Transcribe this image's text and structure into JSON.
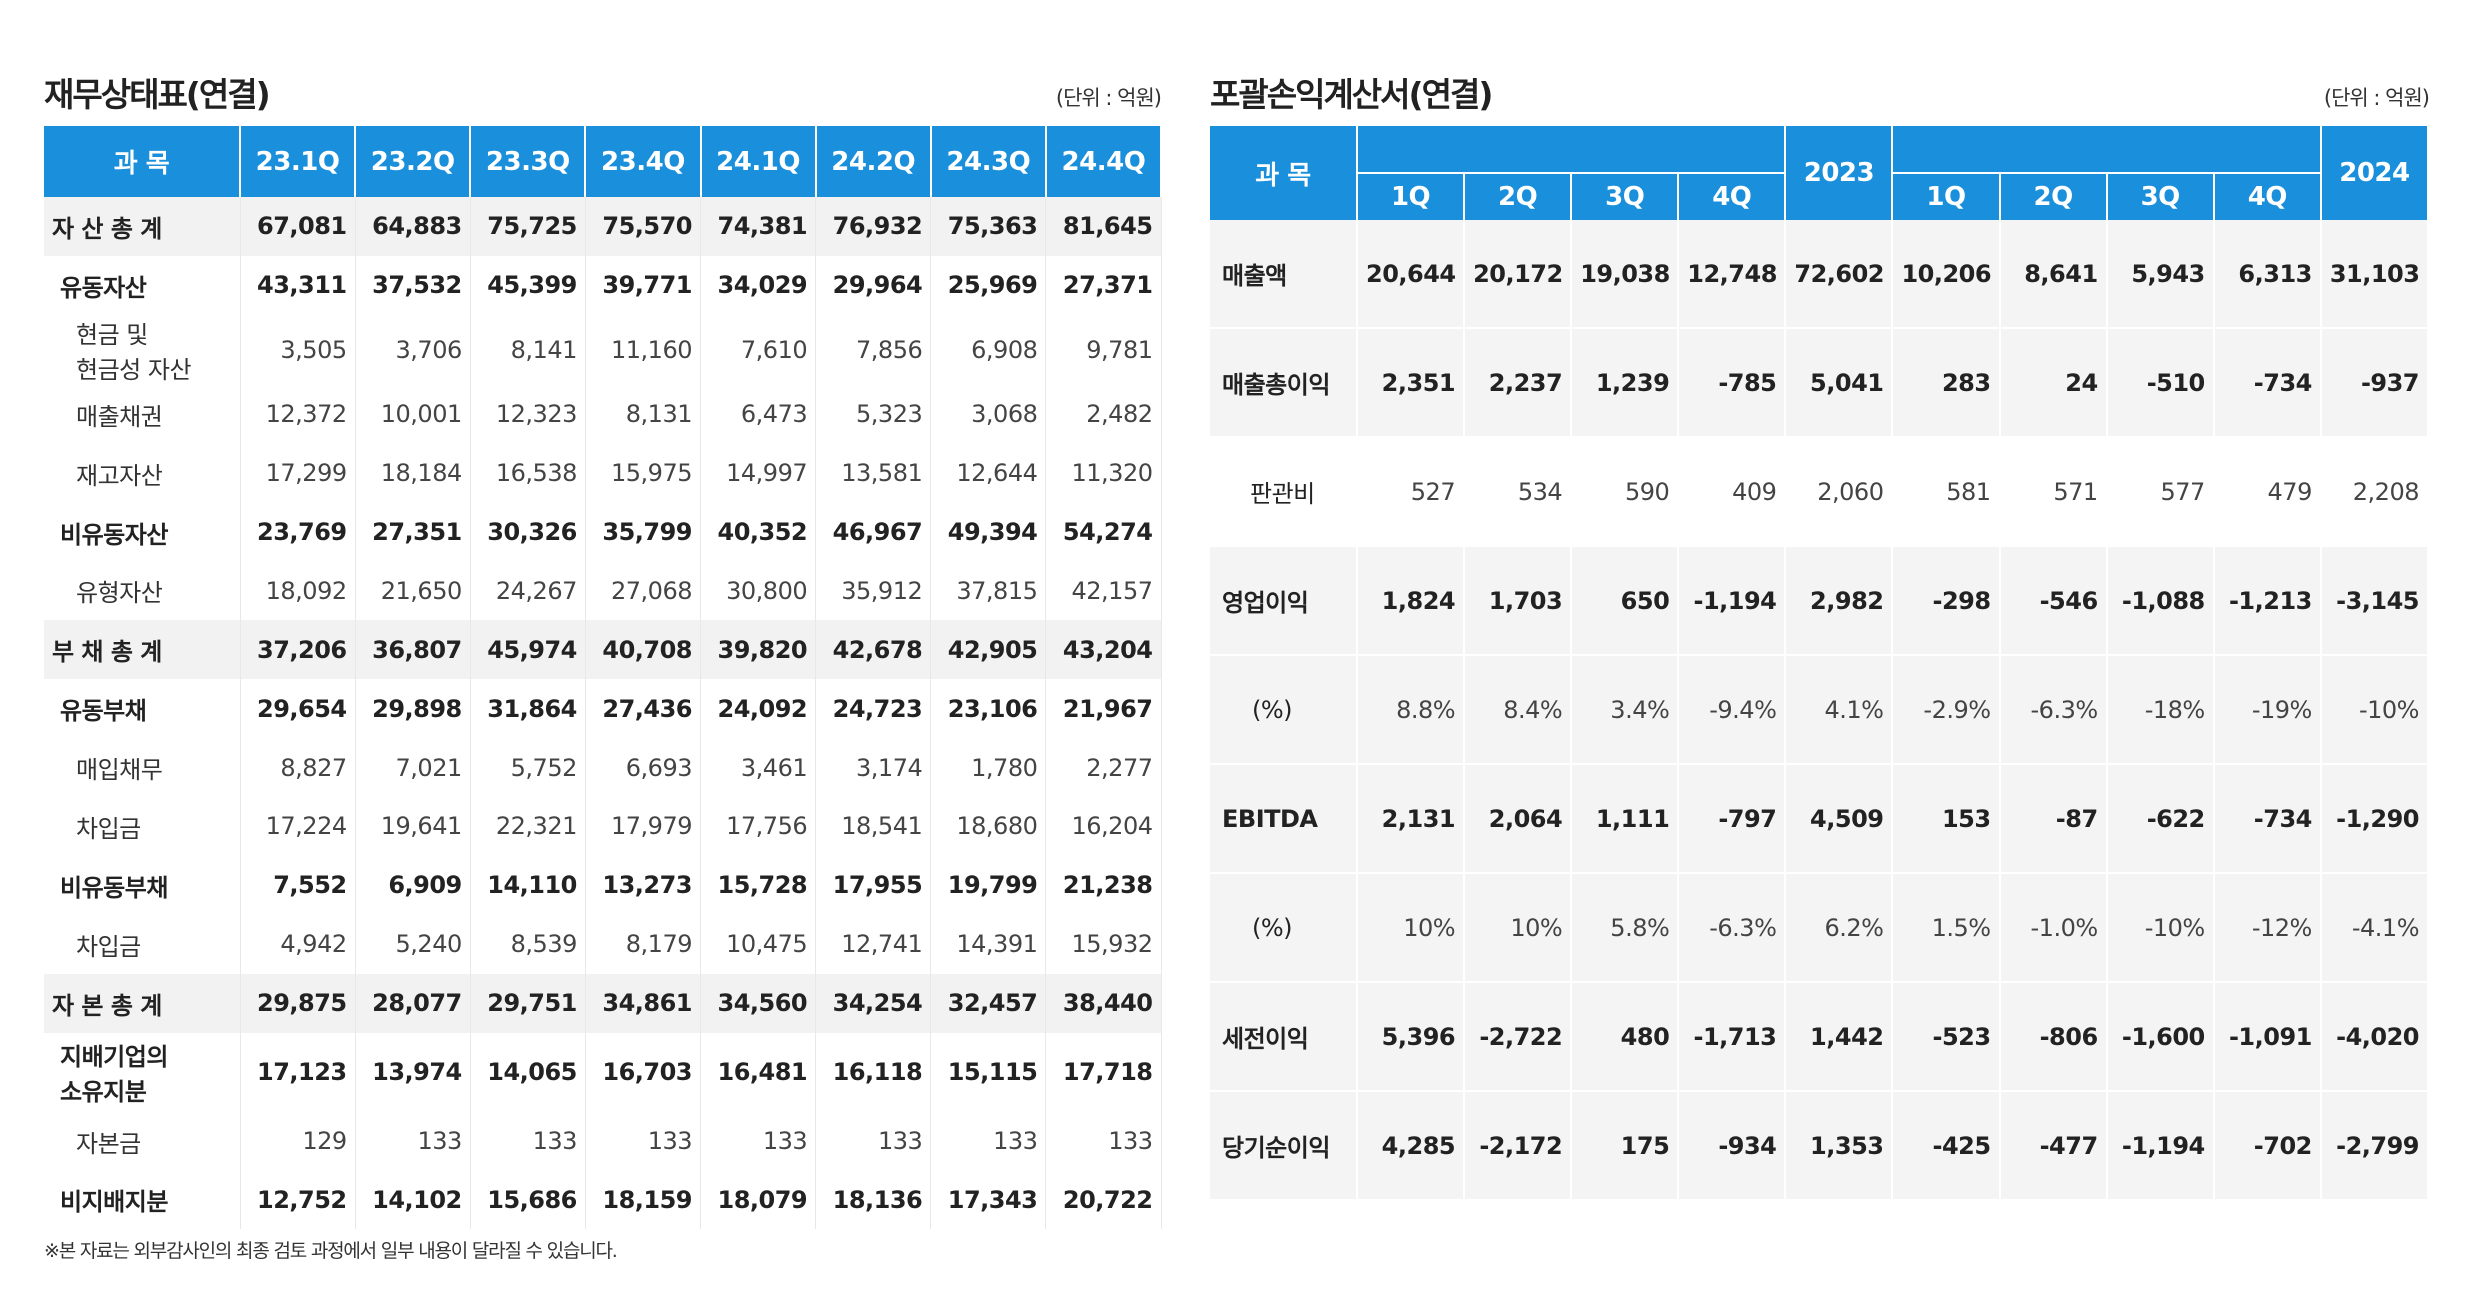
{
  "balance_sheet": {
    "title": "재무상태표(연결)",
    "unit": "(단위 : 억원)",
    "header": [
      "과 목",
      "23.1Q",
      "23.2Q",
      "23.3Q",
      "23.4Q",
      "24.1Q",
      "24.2Q",
      "24.3Q",
      "24.4Q"
    ],
    "rows": [
      {
        "label": "자 산 총 계",
        "values": [
          "67,081",
          "64,883",
          "75,725",
          "75,570",
          "74,381",
          "76,932",
          "75,363",
          "81,645"
        ]
      },
      {
        "label": "유동자산",
        "values": [
          "43,311",
          "37,532",
          "45,399",
          "39,771",
          "34,029",
          "29,964",
          "25,969",
          "27,371"
        ]
      },
      {
        "label": "현금 및\n현금성 자산",
        "values": [
          "3,505",
          "3,706",
          "8,141",
          "11,160",
          "7,610",
          "7,856",
          "6,908",
          "9,781"
        ]
      },
      {
        "label": "매출채권",
        "values": [
          "12,372",
          "10,001",
          "12,323",
          "8,131",
          "6,473",
          "5,323",
          "3,068",
          "2,482"
        ]
      },
      {
        "label": "재고자산",
        "values": [
          "17,299",
          "18,184",
          "16,538",
          "15,975",
          "14,997",
          "13,581",
          "12,644",
          "11,320"
        ]
      },
      {
        "label": "비유동자산",
        "values": [
          "23,769",
          "27,351",
          "30,326",
          "35,799",
          "40,352",
          "46,967",
          "49,394",
          "54,274"
        ]
      },
      {
        "label": "유형자산",
        "values": [
          "18,092",
          "21,650",
          "24,267",
          "27,068",
          "30,800",
          "35,912",
          "37,815",
          "42,157"
        ]
      },
      {
        "label": "부 채 총 계",
        "values": [
          "37,206",
          "36,807",
          "45,974",
          "40,708",
          "39,820",
          "42,678",
          "42,905",
          "43,204"
        ]
      },
      {
        "label": "유동부채",
        "values": [
          "29,654",
          "29,898",
          "31,864",
          "27,436",
          "24,092",
          "24,723",
          "23,106",
          "21,967"
        ]
      },
      {
        "label": "매입채무",
        "values": [
          "8,827",
          "7,021",
          "5,752",
          "6,693",
          "3,461",
          "3,174",
          "1,780",
          "2,277"
        ]
      },
      {
        "label": "차입금",
        "values": [
          "17,224",
          "19,641",
          "22,321",
          "17,979",
          "17,756",
          "18,541",
          "18,680",
          "16,204"
        ]
      },
      {
        "label": "비유동부채",
        "values": [
          "7,552",
          "6,909",
          "14,110",
          "13,273",
          "15,728",
          "17,955",
          "19,799",
          "21,238"
        ]
      },
      {
        "label": "차입금",
        "values": [
          "4,942",
          "5,240",
          "8,539",
          "8,179",
          "10,475",
          "12,741",
          "14,391",
          "15,932"
        ]
      },
      {
        "label": "자 본 총 계",
        "values": [
          "29,875",
          "28,077",
          "29,751",
          "34,861",
          "34,560",
          "34,254",
          "32,457",
          "38,440"
        ]
      },
      {
        "label": "지배기업의\n소유지분",
        "values": [
          "17,123",
          "13,974",
          "14,065",
          "16,703",
          "16,481",
          "16,118",
          "15,115",
          "17,718"
        ]
      },
      {
        "label": "자본금",
        "values": [
          "129",
          "133",
          "133",
          "133",
          "133",
          "133",
          "133",
          "133"
        ]
      },
      {
        "label": "비지배지분",
        "values": [
          "12,752",
          "14,102",
          "15,686",
          "18,159",
          "18,079",
          "18,136",
          "17,343",
          "20,722"
        ]
      }
    ]
  },
  "income_statement": {
    "title": "포괄손익계산서(연결)",
    "unit": "(단위 : 억원)",
    "header": {
      "subject": "과 목",
      "groups": [
        {
          "year": "2023",
          "quarters": [
            "1Q",
            "2Q",
            "3Q",
            "4Q"
          ]
        },
        {
          "year": "2024",
          "quarters": [
            "1Q",
            "2Q",
            "3Q",
            "4Q"
          ]
        }
      ]
    },
    "rows": [
      {
        "label": "매출액",
        "values": [
          "20,644",
          "20,172",
          "19,038",
          "12,748",
          "72,602",
          "10,206",
          "8,641",
          "5,943",
          "6,313",
          "31,103"
        ]
      },
      {
        "label": "매출총이익",
        "values": [
          "2,351",
          "2,237",
          "1,239",
          "-785",
          "5,041",
          "283",
          "24",
          "-510",
          "-734",
          "-937"
        ]
      },
      {
        "label": "판관비",
        "values": [
          "527",
          "534",
          "590",
          "409",
          "2,060",
          "581",
          "571",
          "577",
          "479",
          "2,208"
        ]
      },
      {
        "label": "영업이익",
        "values": [
          "1,824",
          "1,703",
          "650",
          "-1,194",
          "2,982",
          "-298",
          "-546",
          "-1,088",
          "-1,213",
          "-3,145"
        ]
      },
      {
        "label": "(%)",
        "values": [
          "8.8%",
          "8.4%",
          "3.4%",
          "-9.4%",
          "4.1%",
          "-2.9%",
          "-6.3%",
          "-18%",
          "-19%",
          "-10%"
        ]
      },
      {
        "label": "EBITDA",
        "values": [
          "2,131",
          "2,064",
          "1,111",
          "-797",
          "4,509",
          "153",
          "-87",
          "-622",
          "-734",
          "-1,290"
        ]
      },
      {
        "label": "(%)",
        "values": [
          "10%",
          "10%",
          "5.8%",
          "-6.3%",
          "6.2%",
          "1.5%",
          "-1.0%",
          "-10%",
          "-12%",
          "-4.1%"
        ]
      },
      {
        "label": "세전이익",
        "values": [
          "5,396",
          "-2,722",
          "480",
          "-1,713",
          "1,442",
          "-523",
          "-806",
          "-1,600",
          "-1,091",
          "-4,020"
        ]
      },
      {
        "label": "당기순이익",
        "values": [
          "4,285",
          "-2,172",
          "175",
          "-934",
          "1,353",
          "-425",
          "-477",
          "-1,194",
          "-702",
          "-2,799"
        ]
      }
    ]
  },
  "footnote": "※본 자료는 외부감사인의 최종 검토 과정에서 일부 내용이 달라질 수 있습니다."
}
